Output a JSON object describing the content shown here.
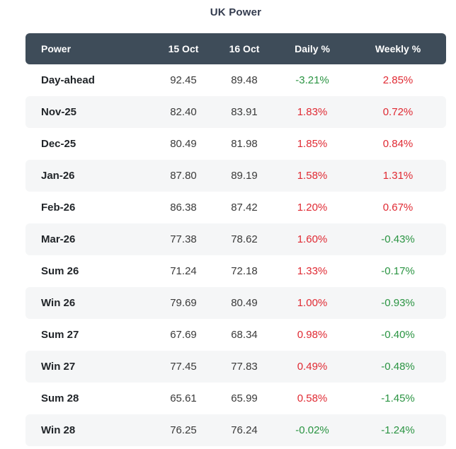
{
  "title": "UK Power",
  "colors": {
    "header_bg": "#3e4c59",
    "header_text": "#ffffff",
    "stripe_bg": "#f5f6f7",
    "positive_pct_red": "#e02a33",
    "negative_pct_green": "#2a9442",
    "label_text": "#212529",
    "value_text": "#3a3a3a",
    "title_text": "#333b4e"
  },
  "table": {
    "columns": [
      "Power",
      "15 Oct",
      "16 Oct",
      "Daily %",
      "Weekly %"
    ],
    "rows": [
      {
        "label": "Day-ahead",
        "oct15": "92.45",
        "oct16": "89.48",
        "daily_pct": "-3.21%",
        "daily_color": "green",
        "weekly_pct": "2.85%",
        "weekly_color": "red"
      },
      {
        "label": "Nov-25",
        "oct15": "82.40",
        "oct16": "83.91",
        "daily_pct": "1.83%",
        "daily_color": "red",
        "weekly_pct": "0.72%",
        "weekly_color": "red"
      },
      {
        "label": "Dec-25",
        "oct15": "80.49",
        "oct16": "81.98",
        "daily_pct": "1.85%",
        "daily_color": "red",
        "weekly_pct": "0.84%",
        "weekly_color": "red"
      },
      {
        "label": "Jan-26",
        "oct15": "87.80",
        "oct16": "89.19",
        "daily_pct": "1.58%",
        "daily_color": "red",
        "weekly_pct": "1.31%",
        "weekly_color": "red"
      },
      {
        "label": "Feb-26",
        "oct15": "86.38",
        "oct16": "87.42",
        "daily_pct": "1.20%",
        "daily_color": "red",
        "weekly_pct": "0.67%",
        "weekly_color": "red"
      },
      {
        "label": "Mar-26",
        "oct15": "77.38",
        "oct16": "78.62",
        "daily_pct": "1.60%",
        "daily_color": "red",
        "weekly_pct": "-0.43%",
        "weekly_color": "green"
      },
      {
        "label": "Sum 26",
        "oct15": "71.24",
        "oct16": "72.18",
        "daily_pct": "1.33%",
        "daily_color": "red",
        "weekly_pct": "-0.17%",
        "weekly_color": "green"
      },
      {
        "label": "Win 26",
        "oct15": "79.69",
        "oct16": "80.49",
        "daily_pct": "1.00%",
        "daily_color": "red",
        "weekly_pct": "-0.93%",
        "weekly_color": "green"
      },
      {
        "label": "Sum 27",
        "oct15": "67.69",
        "oct16": "68.34",
        "daily_pct": "0.98%",
        "daily_color": "red",
        "weekly_pct": "-0.40%",
        "weekly_color": "green"
      },
      {
        "label": "Win 27",
        "oct15": "77.45",
        "oct16": "77.83",
        "daily_pct": "0.49%",
        "daily_color": "red",
        "weekly_pct": "-0.48%",
        "weekly_color": "green"
      },
      {
        "label": "Sum 28",
        "oct15": "65.61",
        "oct16": "65.99",
        "daily_pct": "0.58%",
        "daily_color": "red",
        "weekly_pct": "-1.45%",
        "weekly_color": "green"
      },
      {
        "label": "Win 28",
        "oct15": "76.25",
        "oct16": "76.24",
        "daily_pct": "-0.02%",
        "daily_color": "green",
        "weekly_pct": "-1.24%",
        "weekly_color": "green"
      }
    ]
  }
}
